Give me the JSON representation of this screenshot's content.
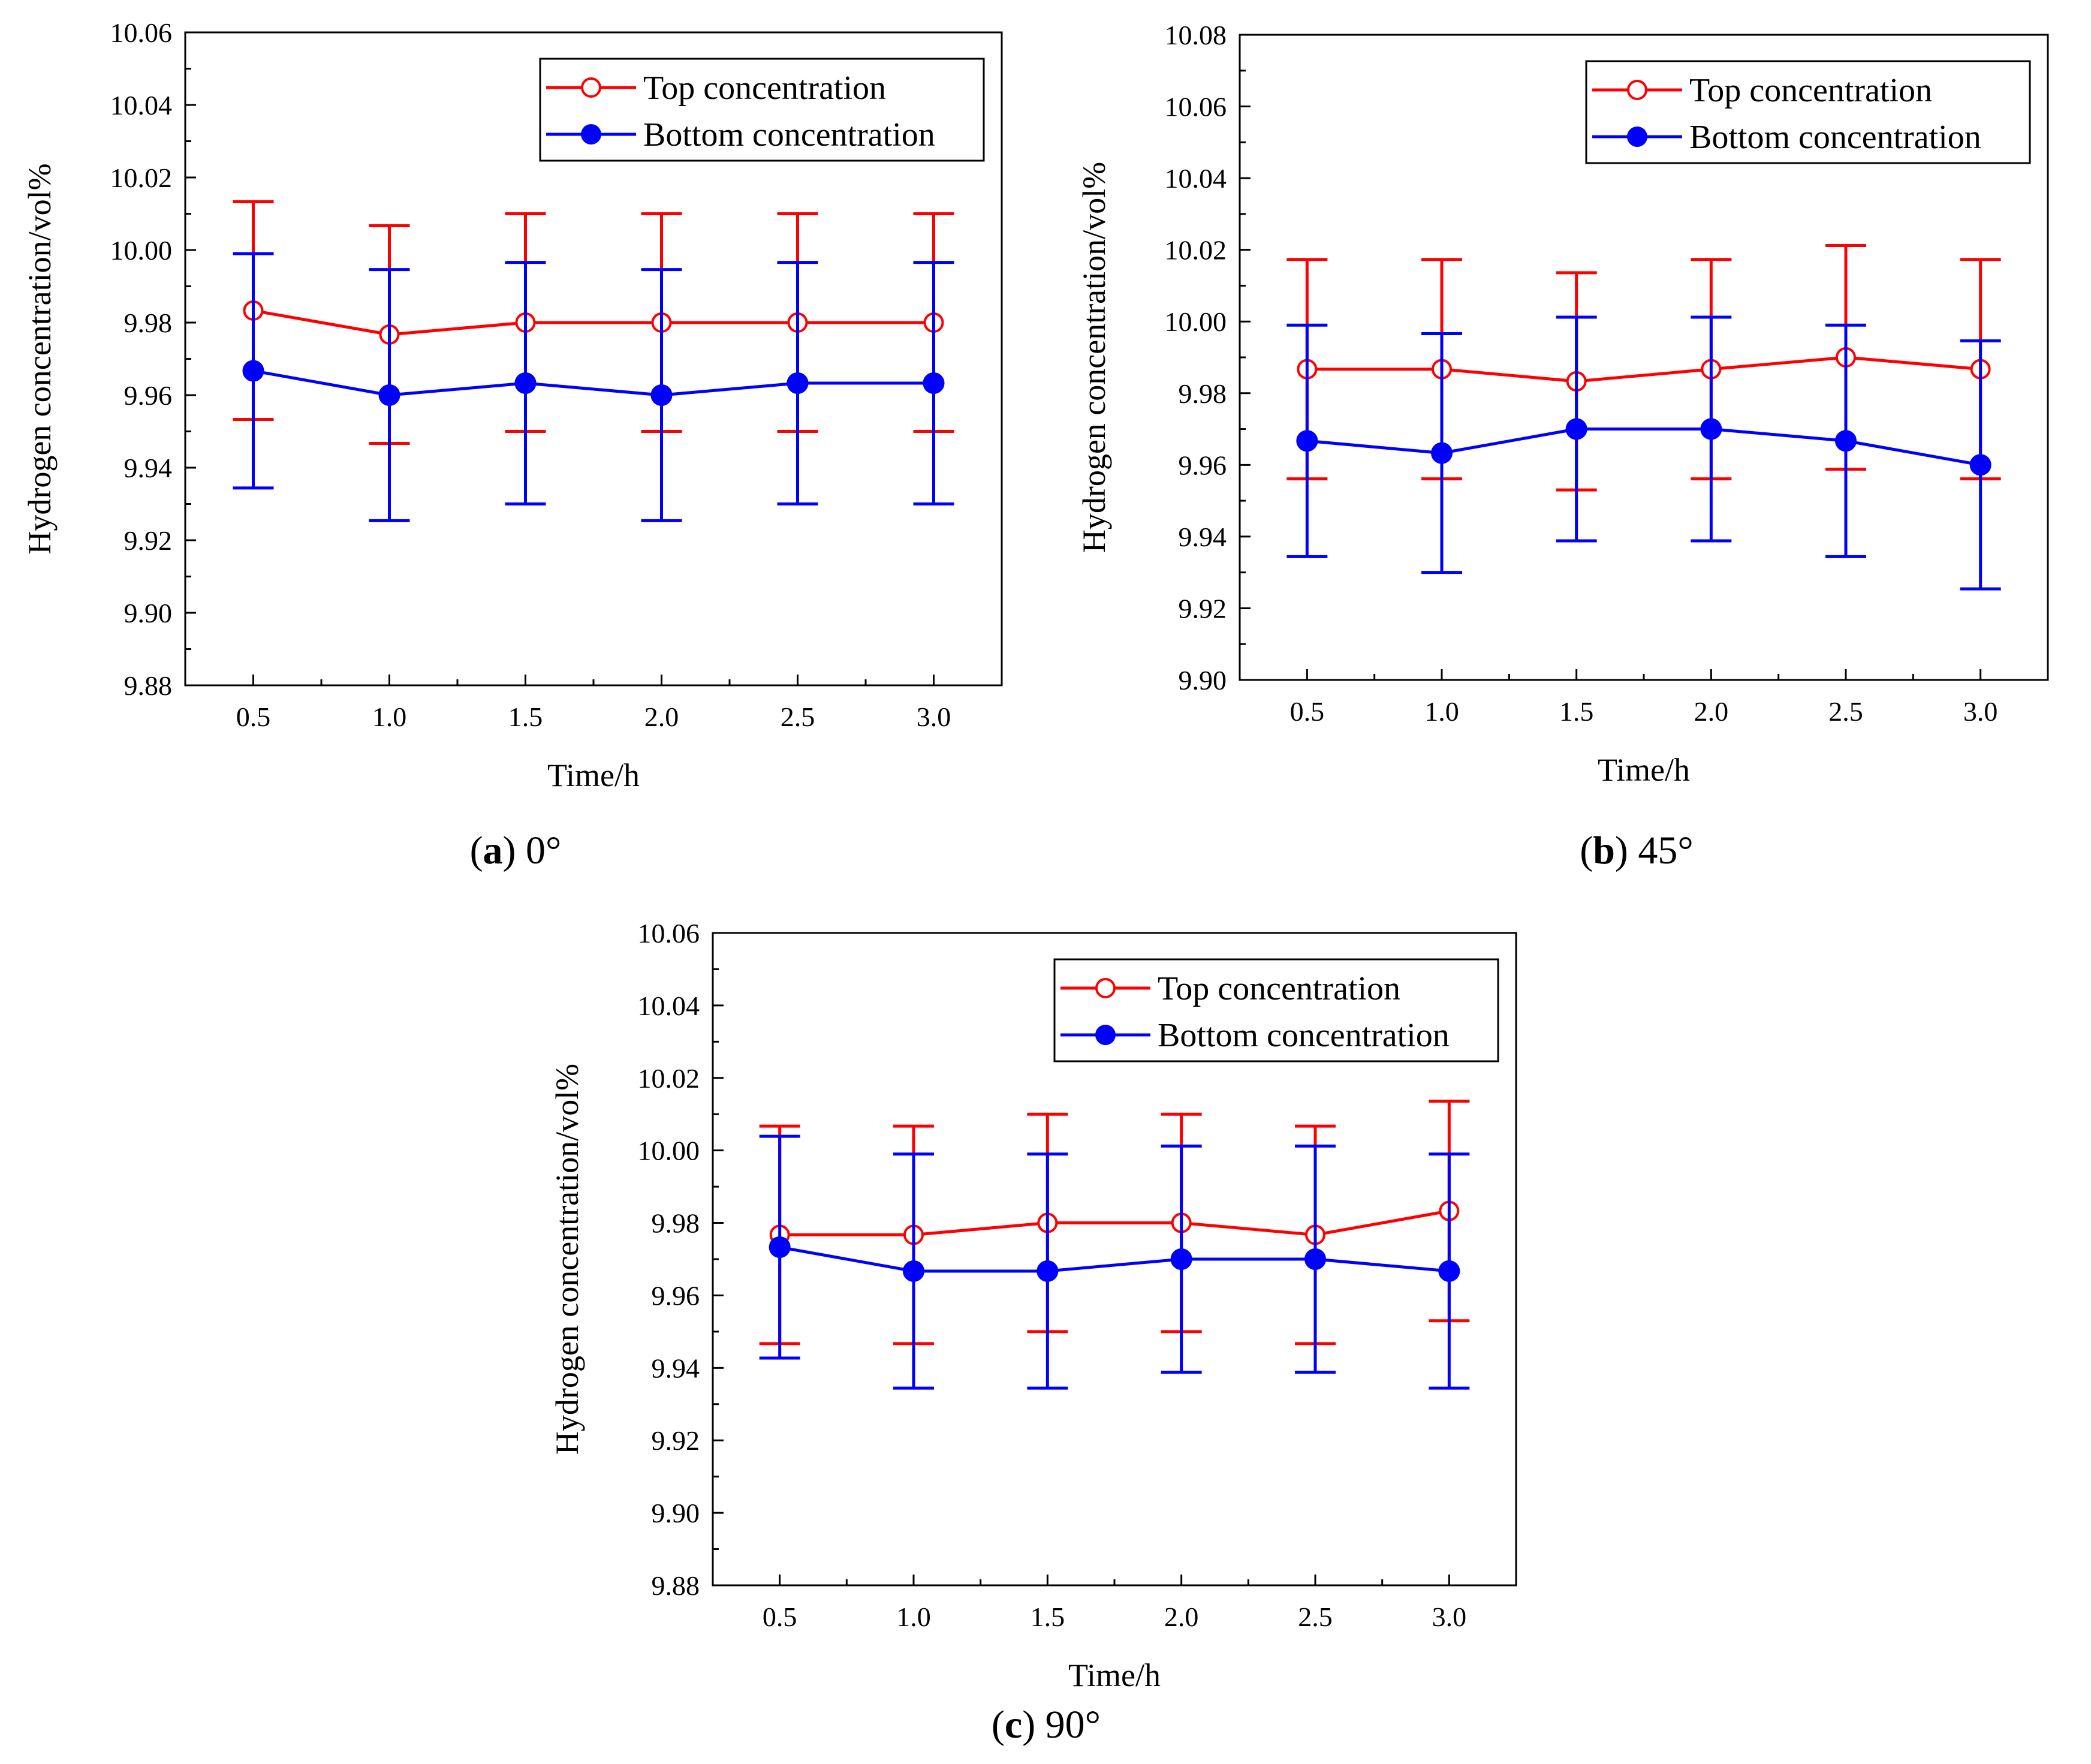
{
  "series_colors": {
    "top": "#ff0000",
    "bottom": "#0000ff"
  },
  "chart_data": [
    {
      "type": "line",
      "caption_letter": "a",
      "caption_text": "0°",
      "xlabel": "Time/h",
      "ylabel": "Hydrogen concentration/vol%",
      "x": [
        0.5,
        1.0,
        1.5,
        2.0,
        2.5,
        3.0
      ],
      "x_tick_labels": [
        "0.5",
        "1.0",
        "1.5",
        "2.0",
        "2.5",
        "3.0"
      ],
      "xlim": [
        0.25,
        3.25
      ],
      "ylim": [
        9.88,
        10.06
      ],
      "y_tick_labels": [
        "9.88",
        "9.90",
        "9.92",
        "9.94",
        "9.96",
        "9.98",
        "10.00",
        "10.02",
        "10.04",
        "10.06"
      ],
      "grid": false,
      "legend_position": "top-right",
      "series": [
        {
          "name": "Top concentration",
          "key": "top",
          "marker": "open-circle",
          "values": [
            9.9833,
            9.9767,
            9.98,
            9.98,
            9.98,
            9.98
          ],
          "error": [
            0.03,
            0.03,
            0.03,
            0.03,
            0.03,
            0.03
          ]
        },
        {
          "name": "Bottom concentration",
          "key": "bottom",
          "marker": "filled-circle",
          "values": [
            9.9667,
            9.96,
            9.9633,
            9.96,
            9.9633,
            9.9633
          ],
          "error": [
            0.0323,
            0.0346,
            0.0333,
            0.0346,
            0.0333,
            0.0333
          ]
        }
      ]
    },
    {
      "type": "line",
      "caption_letter": "b",
      "caption_text": "45°",
      "xlabel": "Time/h",
      "ylabel": "Hydrogen concentration/vol%",
      "x": [
        0.5,
        1.0,
        1.5,
        2.0,
        2.5,
        3.0
      ],
      "x_tick_labels": [
        "0.5",
        "1.0",
        "1.5",
        "2.0",
        "2.5",
        "3.0"
      ],
      "xlim": [
        0.25,
        3.25
      ],
      "ylim": [
        9.9,
        10.08
      ],
      "y_tick_labels": [
        "9.90",
        "9.92",
        "9.94",
        "9.96",
        "9.98",
        "10.00",
        "10.02",
        "10.04",
        "10.06",
        "10.08"
      ],
      "grid": false,
      "legend_position": "top-right",
      "series": [
        {
          "name": "Top concentration",
          "key": "top",
          "marker": "open-circle",
          "values": [
            9.9867,
            9.9867,
            9.9833,
            9.9867,
            9.99,
            9.9867
          ],
          "error": [
            0.0306,
            0.0306,
            0.0303,
            0.0306,
            0.0312,
            0.0306
          ]
        },
        {
          "name": "Bottom concentration",
          "key": "bottom",
          "marker": "filled-circle",
          "values": [
            9.9667,
            9.9633,
            9.97,
            9.97,
            9.9667,
            9.96
          ],
          "error": [
            0.0323,
            0.0333,
            0.0312,
            0.0312,
            0.0323,
            0.0346
          ]
        }
      ]
    },
    {
      "type": "line",
      "caption_letter": "c",
      "caption_text": "90°",
      "xlabel": "Time/h",
      "ylabel": "Hydrogen concentration/vol%",
      "x": [
        0.5,
        1.0,
        1.5,
        2.0,
        2.5,
        3.0
      ],
      "x_tick_labels": [
        "0.5",
        "1.0",
        "1.5",
        "2.0",
        "2.5",
        "3.0"
      ],
      "xlim": [
        0.25,
        3.25
      ],
      "ylim": [
        9.88,
        10.06
      ],
      "y_tick_labels": [
        "9.88",
        "9.90",
        "9.92",
        "9.94",
        "9.96",
        "9.98",
        "10.00",
        "10.02",
        "10.04",
        "10.06"
      ],
      "grid": false,
      "legend_position": "top-right",
      "series": [
        {
          "name": "Top concentration",
          "key": "top",
          "marker": "open-circle",
          "values": [
            9.9767,
            9.9767,
            9.98,
            9.98,
            9.9767,
            9.9833
          ],
          "error": [
            0.03,
            0.03,
            0.03,
            0.03,
            0.03,
            0.0303
          ]
        },
        {
          "name": "Bottom concentration",
          "key": "bottom",
          "marker": "filled-circle",
          "values": [
            9.9733,
            9.9667,
            9.9667,
            9.97,
            9.97,
            9.9667
          ],
          "error": [
            0.0306,
            0.0323,
            0.0323,
            0.0312,
            0.0312,
            0.0323
          ]
        }
      ]
    }
  ]
}
